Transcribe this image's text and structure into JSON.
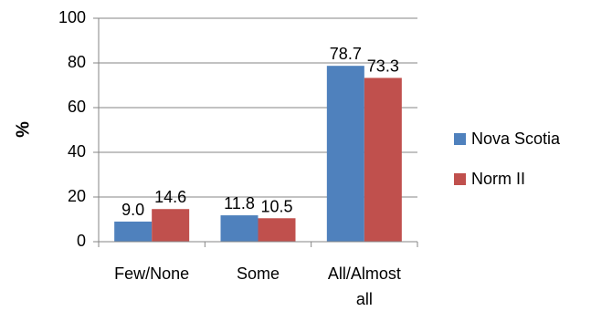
{
  "chart_data": {
    "type": "bar",
    "title": "",
    "xlabel": "",
    "ylabel": "%",
    "ylim": [
      0,
      100
    ],
    "yticks": [
      0,
      20,
      40,
      60,
      80,
      100
    ],
    "grid": true,
    "legend_position": "right",
    "categories": [
      "Few/None",
      "Some",
      "All/Almost all"
    ],
    "series": [
      {
        "name": "Nova Scotia",
        "color": "#4F81BD",
        "values": [
          9.0,
          11.8,
          78.7
        ],
        "labels": [
          "9.0",
          "11.8",
          "78.7"
        ]
      },
      {
        "name": "Norm II",
        "color": "#C0504D",
        "values": [
          14.6,
          10.5,
          73.3
        ],
        "labels": [
          "14.6",
          "10.5",
          "73.3"
        ]
      }
    ]
  }
}
